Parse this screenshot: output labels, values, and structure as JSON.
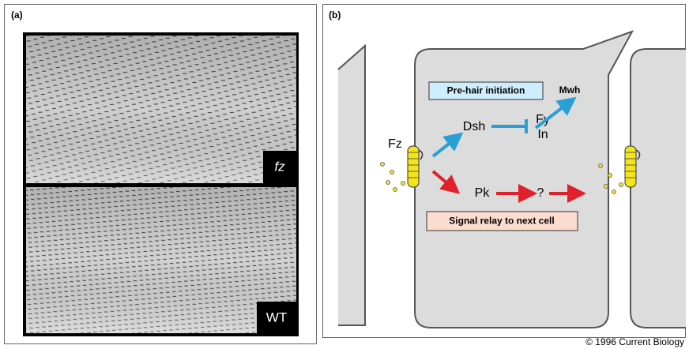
{
  "panel_a": {
    "label": "(a)",
    "top_image_label": "fz",
    "bottom_image_label": "WT"
  },
  "panel_b": {
    "label": "(b)",
    "boxes": {
      "pre_hair": "Pre-hair initiation",
      "signal_relay": "Signal relay to next cell"
    },
    "nodes": {
      "fz": "Fz",
      "dsh": "Dsh",
      "fy": "Fy",
      "in": "In",
      "mwh": "Mwh",
      "pk": "Pk",
      "unknown": "?"
    }
  },
  "credit": "© 1996 Current Biology"
}
